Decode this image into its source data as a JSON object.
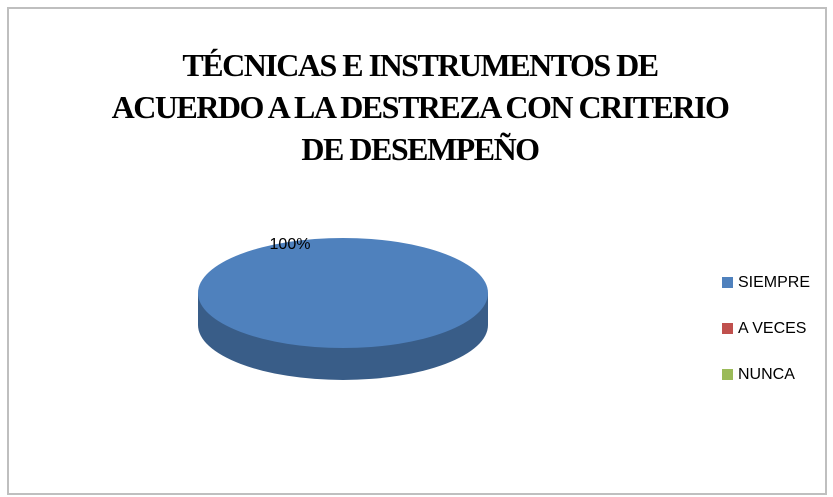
{
  "chart_data": {
    "type": "pie",
    "title": "TÉCNICAS E INSTRUMENTOS DE ACUERDO A LA DESTREZA CON CRITERIO DE DESEMPEÑO",
    "categories": [
      "SIEMPRE",
      "A VECES",
      "NUNCA"
    ],
    "values": [
      100,
      0,
      0
    ],
    "value_labels": [
      "100%",
      null,
      null
    ],
    "colors": [
      "#4f81bd",
      "#c0504d",
      "#9bbb59"
    ],
    "legend": "right"
  }
}
